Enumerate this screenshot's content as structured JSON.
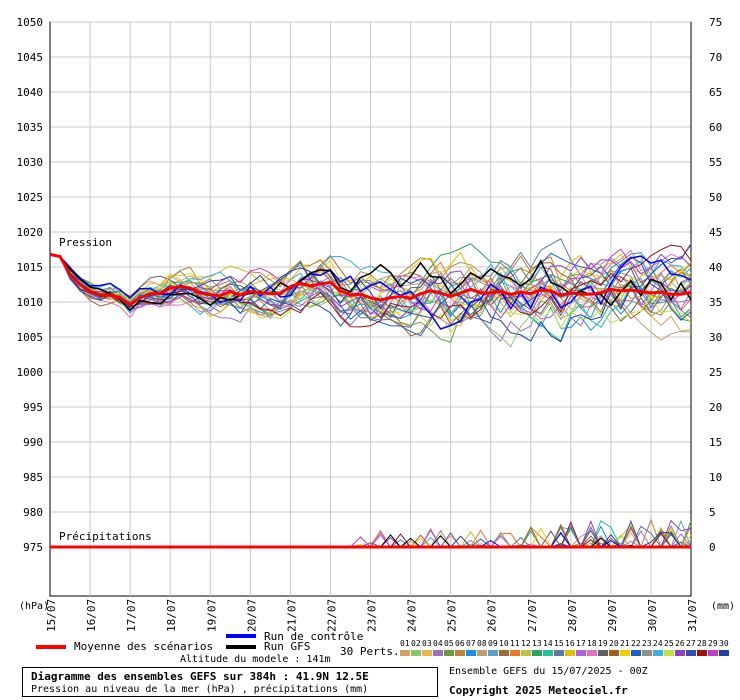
{
  "chart_data": {
    "type": "line",
    "title": "Diagramme des ensembles GEFS sur 384h : 41.9N 12.5E",
    "subtitle": "Pression au niveau de la mer (hPa) , précipitations (mm)",
    "ylabel_left": "(hPa)",
    "ylabel_right": "(mm)",
    "left_axis": {
      "min": 975,
      "max": 1050,
      "ticks": [
        "1050",
        "1045",
        "1040",
        "1035",
        "1030",
        "1025",
        "1020",
        "1015",
        "1010",
        "1005",
        "1000",
        "995",
        "990",
        "985",
        "980",
        "975"
      ]
    },
    "right_axis": {
      "min": 0,
      "max": 75,
      "ticks": [
        "75",
        "70",
        "65",
        "60",
        "55",
        "50",
        "45",
        "40",
        "35",
        "30",
        "25",
        "20",
        "15",
        "10",
        "5",
        "0"
      ]
    },
    "x_ticks": [
      "15/07",
      "16/07",
      "17/07",
      "18/07",
      "19/07",
      "20/07",
      "21/07",
      "22/07",
      "23/07",
      "24/07",
      "25/07",
      "26/07",
      "27/07",
      "28/07",
      "29/07",
      "30/07",
      "31/07"
    ],
    "x_range_days": [
      0,
      16
    ],
    "grid": true,
    "annotations": {
      "pressure": "Pression",
      "precip": "Précipitations"
    },
    "mean_series": {
      "name": "Moyenne des scénarios",
      "color": "#ff0000",
      "pressure": [
        1016.8,
        1016.5,
        1014,
        1012.5,
        1011.5,
        1011,
        1011,
        1010.6,
        1009.6,
        1010.6,
        1011.2,
        1011.2,
        1012,
        1012.2,
        1012,
        1011.3,
        1011,
        1010.9,
        1011.5,
        1011,
        1011.5,
        1011.3,
        1011.2,
        1011.2,
        1012.2,
        1012.7,
        1012.3,
        1012.6,
        1012.8,
        1011.6,
        1011,
        1011.1,
        1010.6,
        1010.3,
        1010.6,
        1010.8,
        1010.5,
        1011.2,
        1011.6,
        1011.3,
        1010.8,
        1011.3,
        1011.8,
        1011.3,
        1011.3,
        1011.5,
        1011.1,
        1011.4,
        1011.2,
        1011.7,
        1011.6,
        1010.9,
        1011.3,
        1011.1,
        1011.1,
        1011.3,
        1011.8,
        1011.6,
        1011.7,
        1011.5,
        1011.3,
        1011.4,
        1011.1,
        1011.1,
        1011.4
      ],
      "precip": [
        0,
        0,
        0,
        0,
        0,
        0,
        0,
        0,
        0,
        0,
        0,
        0,
        0,
        0,
        0,
        0,
        0,
        0,
        0,
        0,
        0,
        0,
        0,
        0,
        0,
        0,
        0,
        0,
        0,
        0,
        0,
        0,
        0,
        0,
        0,
        0,
        0,
        0,
        0,
        0,
        0,
        0,
        0,
        0,
        0,
        0,
        0,
        0,
        0,
        0,
        0,
        0,
        0,
        0,
        0,
        0,
        0,
        0,
        0,
        0,
        0,
        0,
        0,
        0,
        0
      ]
    },
    "control_series": {
      "name": "Run de contrôle",
      "color": "#0000ff"
    },
    "gfs_series": {
      "name": "Run GFS",
      "color": "#000000"
    },
    "perturbations": {
      "label": "30 Perts.",
      "numbers": [
        "01",
        "02",
        "03",
        "04",
        "05",
        "06",
        "07",
        "08",
        "09",
        "10",
        "11",
        "12",
        "13",
        "14",
        "15",
        "16",
        "17",
        "18",
        "19",
        "20",
        "21",
        "22",
        "23",
        "24",
        "25",
        "26",
        "27",
        "28",
        "29",
        "30"
      ],
      "colors": [
        "#d9a066",
        "#88c46c",
        "#e8b64c",
        "#a070c0",
        "#6c9a3c",
        "#c08040",
        "#1e8fe0",
        "#b8a070",
        "#5aa0c8",
        "#9a6a3a",
        "#e87830",
        "#c0c040",
        "#30a060",
        "#20c0a0",
        "#5a78a0",
        "#e0c000",
        "#b060e0",
        "#e070c0",
        "#606060",
        "#a06020",
        "#f0d000",
        "#2060c0",
        "#909090",
        "#40b0e0",
        "#c0e040",
        "#9040c0",
        "#3050b0",
        "#a01010",
        "#c040c0",
        "#2040a0"
      ]
    }
  },
  "legend": {
    "mean_label": "Moyenne des scénarios",
    "control_label": "Run de contrôle",
    "gfs_label": "Run GFS"
  },
  "footer": {
    "altitude": "Altitude du modele : 141m",
    "run_info": "Ensemble GEFS du 15/07/2025 - 00Z",
    "copyright": "Copyright 2025 Meteociel.fr"
  }
}
